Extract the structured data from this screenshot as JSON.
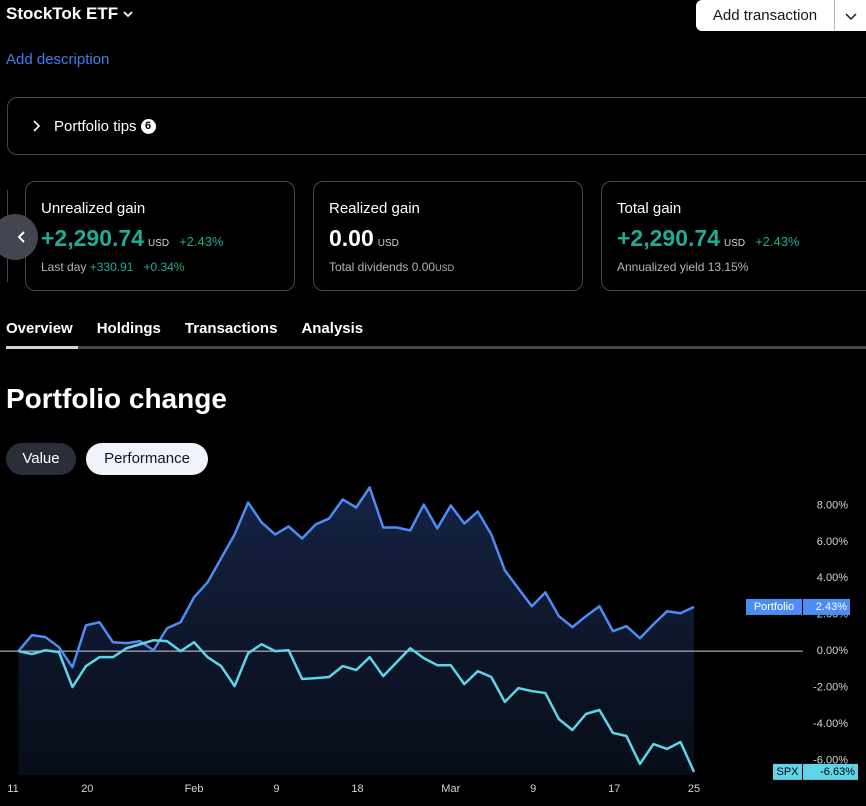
{
  "header": {
    "title": "StockTok ETF",
    "button": "Add transaction",
    "description": "Add description"
  },
  "tips": {
    "label": "Portfolio tips",
    "count": 6
  },
  "cards": [
    {
      "title": "Unrealized gain",
      "value": "+2,290.74",
      "unit": "USD",
      "change": "+2.43%",
      "sub_label": "Last day",
      "sub_value": "+330.91",
      "sub_change": "+0.34%"
    },
    {
      "title": "Realized gain",
      "value": "0.00",
      "unit": "USD",
      "sub_label": "Total dividends",
      "sub_value": "0.00",
      "sub_unit": "USD"
    },
    {
      "title": "Total gain",
      "value": "+2,290.74",
      "unit": "USD",
      "change": "+2.43%",
      "sub_label": "Annualized yield 13.15%"
    }
  ],
  "tabs": [
    "Overview",
    "Holdings",
    "Transactions",
    "Analysis"
  ],
  "section_title": "Portfolio change",
  "toggles": [
    "Value",
    "Performance"
  ],
  "chart_data": {
    "type": "line",
    "x": [
      0,
      1,
      2,
      3,
      4,
      5,
      6,
      7,
      8,
      9,
      10,
      11,
      12,
      13,
      14,
      15,
      16,
      17,
      18,
      19,
      20,
      21,
      22,
      23,
      24,
      25,
      26,
      27,
      28,
      29,
      30,
      31,
      32,
      33,
      34,
      35,
      36,
      37,
      38,
      39,
      40,
      41,
      42,
      43,
      44,
      45,
      46,
      47,
      48,
      49,
      50
    ],
    "xlim": [
      -0.4,
      50
    ],
    "xticks": [
      {
        "value": -0.4,
        "label": "11"
      },
      {
        "value": 5.1,
        "label": "20"
      },
      {
        "value": 13.0,
        "label": "Feb"
      },
      {
        "value": 19.1,
        "label": "9"
      },
      {
        "value": 25.1,
        "label": "18"
      },
      {
        "value": 32.0,
        "label": "Mar"
      },
      {
        "value": 38.1,
        "label": "9"
      },
      {
        "value": 44.1,
        "label": "17"
      },
      {
        "value": 50,
        "label": "25"
      }
    ],
    "ylim": [
      -6.8,
      9.4
    ],
    "yticks": [
      {
        "value": 8,
        "label": "8.00%"
      },
      {
        "value": 6,
        "label": "6.00%"
      },
      {
        "value": 4,
        "label": "4.00%"
      },
      {
        "value": 2,
        "label": "2.00%"
      },
      {
        "value": 0,
        "label": "0.00%"
      },
      {
        "value": -2,
        "label": "-2.00%"
      },
      {
        "value": -4,
        "label": "-4.00%"
      },
      {
        "value": -6,
        "label": "-6.00%"
      }
    ],
    "zero_line": true,
    "series": [
      {
        "name": "Portfolio",
        "color": "#4e8cf5",
        "values": [
          0,
          0.88,
          0.77,
          0.22,
          -0.88,
          1.42,
          1.59,
          0.49,
          0.44,
          0.55,
          0.05,
          1.26,
          1.59,
          2.96,
          3.78,
          5.1,
          6.41,
          8.16,
          7.07,
          6.41,
          6.85,
          6.19,
          6.96,
          7.29,
          8.33,
          7.89,
          8.99,
          6.79,
          6.79,
          6.63,
          8.05,
          6.74,
          8.0,
          7.01,
          7.67,
          6.41,
          4.44,
          3.45,
          2.47,
          3.23,
          1.92,
          1.32,
          1.92,
          2.47,
          1.1,
          1.37,
          0.71,
          1.48,
          2.19,
          2.08,
          2.43
        ],
        "value_labels": [
          null,
          null,
          null,
          null,
          null,
          null,
          null,
          null,
          null,
          null,
          null,
          null,
          null,
          null,
          null,
          null,
          null,
          null,
          null,
          null,
          null,
          null,
          null,
          null,
          null,
          null,
          null,
          null,
          null,
          null,
          null,
          null,
          null,
          null,
          null,
          null,
          null,
          null,
          null,
          null,
          null,
          null,
          null,
          null,
          null,
          null,
          null,
          null,
          null,
          null,
          "2.43%"
        ]
      },
      {
        "name": "SPX",
        "color": "#5fd3e8",
        "values": [
          0,
          -0.16,
          0.05,
          -0.05,
          -1.97,
          -0.82,
          -0.33,
          -0.33,
          0.16,
          0.38,
          0.6,
          0.55,
          0,
          0.49,
          -0.33,
          -0.82,
          -1.92,
          -0.11,
          0.38,
          0,
          0.05,
          -1.53,
          -1.48,
          -1.42,
          -0.82,
          -1.04,
          -0.33,
          -1.37,
          -0.6,
          0.16,
          -0.38,
          -0.77,
          -0.77,
          -1.81,
          -1.1,
          -1.42,
          -2.79,
          -2.03,
          -2.19,
          -2.3,
          -3.73,
          -4.33,
          -3.45,
          -3.23,
          -4.49,
          -4.66,
          -6.19,
          -5.1,
          -5.37,
          -4.99,
          -6.63
        ],
        "value_labels": [
          null,
          null,
          null,
          null,
          null,
          null,
          null,
          null,
          null,
          null,
          null,
          null,
          null,
          null,
          null,
          null,
          null,
          null,
          null,
          null,
          null,
          null,
          null,
          null,
          null,
          null,
          null,
          null,
          null,
          null,
          null,
          null,
          null,
          null,
          null,
          null,
          null,
          null,
          null,
          null,
          null,
          null,
          null,
          null,
          null,
          null,
          null,
          null,
          null,
          null,
          "-6.63%"
        ]
      }
    ]
  }
}
